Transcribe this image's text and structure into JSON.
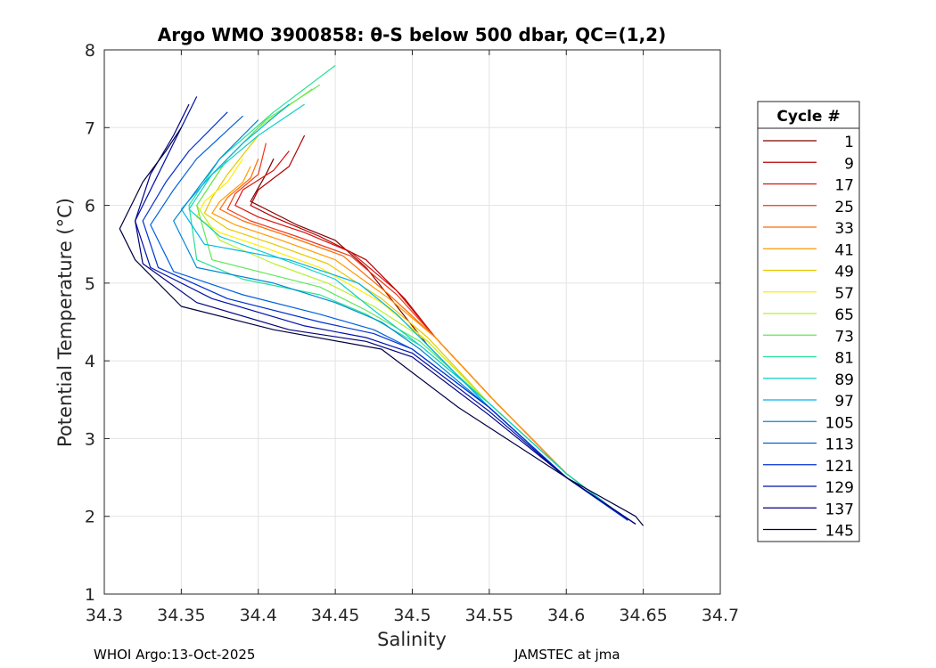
{
  "chart_data": {
    "type": "line",
    "title": "Argo WMO 3900858: θ-S below 500 dbar,  QC=(1,2)",
    "xlabel": "Salinity",
    "ylabel": "Potential Temperature (°C)",
    "xlim": [
      34.3,
      34.7
    ],
    "ylim": [
      1,
      8
    ],
    "xticks": [
      34.3,
      34.35,
      34.4,
      34.45,
      34.5,
      34.55,
      34.6,
      34.65,
      34.7
    ],
    "xtick_labels": [
      "34.3",
      "34.35",
      "34.4",
      "34.45",
      "34.5",
      "34.55",
      "34.6",
      "34.65",
      "34.7"
    ],
    "yticks": [
      1,
      2,
      3,
      4,
      5,
      6,
      7,
      8
    ],
    "ytick_labels": [
      "1",
      "2",
      "3",
      "4",
      "5",
      "6",
      "7",
      "8"
    ],
    "grid": true,
    "legend": {
      "title": "Cycle #",
      "position": "right",
      "entries": [
        {
          "label": "1",
          "color": "#800000"
        },
        {
          "label": "9",
          "color": "#b00000"
        },
        {
          "label": "17",
          "color": "#d81010"
        },
        {
          "label": "25",
          "color": "#f03818"
        },
        {
          "label": "33",
          "color": "#ff6a00"
        },
        {
          "label": "41",
          "color": "#ff9a00"
        },
        {
          "label": "49",
          "color": "#e8c800"
        },
        {
          "label": "57",
          "color": "#ffee00"
        },
        {
          "label": "65",
          "color": "#b8f030"
        },
        {
          "label": "73",
          "color": "#60e858"
        },
        {
          "label": "81",
          "color": "#28e098"
        },
        {
          "label": "89",
          "color": "#10d0c8"
        },
        {
          "label": "97",
          "color": "#00b4e8"
        },
        {
          "label": "105",
          "color": "#0088d8"
        },
        {
          "label": "113",
          "color": "#0060e0"
        },
        {
          "label": "121",
          "color": "#0030d0"
        },
        {
          "label": "129",
          "color": "#0010a8"
        },
        {
          "label": "137",
          "color": "#000080"
        },
        {
          "label": "145",
          "color": "#000040"
        }
      ]
    },
    "series": [
      {
        "name": "1",
        "color": "#800000",
        "x": [
          34.41,
          34.405,
          34.395,
          34.405,
          34.425,
          34.45,
          34.47,
          34.49,
          34.51,
          34.55,
          34.6,
          34.645
        ],
        "y": [
          6.6,
          6.4,
          6.05,
          5.95,
          5.75,
          5.55,
          5.2,
          4.7,
          4.2,
          3.4,
          2.5,
          1.9
        ]
      },
      {
        "name": "9",
        "color": "#b00000",
        "x": [
          34.43,
          34.42,
          34.4,
          34.395,
          34.41,
          34.44,
          34.47,
          34.495,
          34.515,
          34.555,
          34.6,
          34.64
        ],
        "y": [
          6.9,
          6.5,
          6.2,
          6.0,
          5.85,
          5.6,
          5.3,
          4.8,
          4.3,
          3.45,
          2.55,
          1.95
        ]
      },
      {
        "name": "17",
        "color": "#d81010",
        "x": [
          34.42,
          34.41,
          34.39,
          34.385,
          34.4,
          34.43,
          34.46,
          34.49,
          34.515,
          34.555,
          34.6,
          34.64
        ],
        "y": [
          6.7,
          6.45,
          6.2,
          6.0,
          5.85,
          5.65,
          5.4,
          4.9,
          4.3,
          3.45,
          2.55,
          1.95
        ]
      },
      {
        "name": "25",
        "color": "#f03818",
        "x": [
          34.405,
          34.4,
          34.385,
          34.38,
          34.395,
          34.425,
          34.46,
          34.49,
          34.515,
          34.555,
          34.6,
          34.64
        ],
        "y": [
          6.8,
          6.4,
          6.15,
          5.95,
          5.8,
          5.6,
          5.35,
          4.85,
          4.3,
          3.45,
          2.55,
          1.95
        ]
      },
      {
        "name": "33",
        "color": "#ff6a00",
        "x": [
          34.4,
          34.395,
          34.38,
          34.375,
          34.39,
          34.42,
          34.455,
          34.485,
          34.515,
          34.555,
          34.6,
          34.64
        ],
        "y": [
          6.6,
          6.35,
          6.1,
          5.95,
          5.8,
          5.6,
          5.35,
          4.85,
          4.3,
          3.45,
          2.55,
          1.95
        ]
      },
      {
        "name": "41",
        "color": "#ff9a00",
        "x": [
          34.395,
          34.39,
          34.375,
          34.37,
          34.385,
          34.415,
          34.45,
          34.485,
          34.515,
          34.555,
          34.6,
          34.64
        ],
        "y": [
          6.5,
          6.3,
          6.05,
          5.9,
          5.75,
          5.55,
          5.3,
          4.8,
          4.3,
          3.45,
          2.55,
          1.95
        ]
      },
      {
        "name": "49",
        "color": "#e8c800",
        "x": [
          34.4,
          34.38,
          34.37,
          34.365,
          34.38,
          34.41,
          34.445,
          34.48,
          34.51,
          34.55,
          34.6,
          34.64
        ],
        "y": [
          6.9,
          6.4,
          6.1,
          5.9,
          5.7,
          5.5,
          5.25,
          4.8,
          4.3,
          3.45,
          2.55,
          1.95
        ]
      },
      {
        "name": "57",
        "color": "#ffee00",
        "x": [
          34.39,
          34.38,
          34.365,
          34.36,
          34.375,
          34.405,
          34.44,
          34.48,
          34.51,
          34.55,
          34.6,
          34.64
        ],
        "y": [
          6.6,
          6.3,
          6.05,
          5.85,
          5.65,
          5.45,
          5.2,
          4.75,
          4.25,
          3.45,
          2.55,
          1.95
        ]
      },
      {
        "name": "65",
        "color": "#b8f030",
        "x": [
          34.435,
          34.4,
          34.38,
          34.36,
          34.375,
          34.41,
          34.445,
          34.475,
          34.51,
          34.55,
          34.6,
          34.64
        ],
        "y": [
          7.5,
          7.0,
          6.6,
          6.0,
          5.55,
          5.25,
          5.0,
          4.7,
          4.25,
          3.45,
          2.55,
          1.95
        ]
      },
      {
        "name": "73",
        "color": "#60e858",
        "x": [
          34.44,
          34.405,
          34.38,
          34.36,
          34.37,
          34.4,
          34.44,
          34.47,
          34.505,
          34.55,
          34.6,
          34.64
        ],
        "y": [
          7.55,
          7.1,
          6.6,
          6.0,
          5.3,
          5.15,
          4.95,
          4.65,
          4.25,
          3.45,
          2.55,
          1.95
        ]
      },
      {
        "name": "81",
        "color": "#28e098",
        "x": [
          34.45,
          34.41,
          34.375,
          34.355,
          34.36,
          34.39,
          34.44,
          34.47,
          34.505,
          34.55,
          34.6,
          34.64
        ],
        "y": [
          7.8,
          7.2,
          6.6,
          6.0,
          5.3,
          5.05,
          4.85,
          4.6,
          4.2,
          3.45,
          2.55,
          1.95
        ]
      },
      {
        "name": "89",
        "color": "#10d0c8",
        "x": [
          34.43,
          34.4,
          34.37,
          34.355,
          34.375,
          34.41,
          34.45,
          34.475,
          34.505,
          34.55,
          34.6,
          34.64
        ],
        "y": [
          7.3,
          6.9,
          6.4,
          5.95,
          5.6,
          5.35,
          5.05,
          4.65,
          4.2,
          3.45,
          2.55,
          1.95
        ]
      },
      {
        "name": "97",
        "color": "#00b4e8",
        "x": [
          34.42,
          34.39,
          34.37,
          34.35,
          34.365,
          34.42,
          34.465,
          34.49,
          34.51,
          34.55,
          34.6,
          34.64
        ],
        "y": [
          7.3,
          6.8,
          6.4,
          5.95,
          5.5,
          5.3,
          5.0,
          4.6,
          4.2,
          3.4,
          2.5,
          1.95
        ]
      },
      {
        "name": "105",
        "color": "#0088d8",
        "x": [
          34.4,
          34.375,
          34.36,
          34.345,
          34.36,
          34.41,
          34.45,
          34.48,
          34.505,
          34.55,
          34.6,
          34.64
        ],
        "y": [
          7.1,
          6.6,
          6.2,
          5.8,
          5.2,
          5.0,
          4.75,
          4.5,
          4.15,
          3.4,
          2.5,
          1.95
        ]
      },
      {
        "name": "113",
        "color": "#0060e0",
        "x": [
          34.39,
          34.36,
          34.345,
          34.33,
          34.345,
          34.39,
          34.44,
          34.475,
          34.5,
          34.55,
          34.6,
          34.64
        ],
        "y": [
          7.15,
          6.6,
          6.2,
          5.75,
          5.15,
          4.85,
          4.6,
          4.4,
          4.15,
          3.4,
          2.5,
          1.95
        ]
      },
      {
        "name": "121",
        "color": "#0030d0",
        "x": [
          34.38,
          34.355,
          34.34,
          34.325,
          34.335,
          34.38,
          34.44,
          34.475,
          34.5,
          34.55,
          34.6,
          34.64
        ],
        "y": [
          7.2,
          6.7,
          6.3,
          5.8,
          5.2,
          4.8,
          4.5,
          4.35,
          4.15,
          3.4,
          2.5,
          1.95
        ]
      },
      {
        "name": "129",
        "color": "#0010a8",
        "x": [
          34.36,
          34.345,
          34.335,
          34.32,
          34.33,
          34.37,
          34.43,
          34.47,
          34.5,
          34.55,
          34.6,
          34.645
        ],
        "y": [
          7.4,
          6.8,
          6.4,
          5.8,
          5.2,
          4.8,
          4.45,
          4.3,
          4.1,
          3.35,
          2.5,
          1.9
        ]
      },
      {
        "name": "137",
        "color": "#000080",
        "x": [
          34.355,
          34.345,
          34.33,
          34.32,
          34.325,
          34.36,
          34.42,
          34.47,
          34.5,
          34.55,
          34.6,
          34.645
        ],
        "y": [
          7.3,
          6.9,
          6.4,
          5.8,
          5.25,
          4.75,
          4.4,
          4.25,
          4.05,
          3.3,
          2.5,
          1.9
        ]
      },
      {
        "name": "145",
        "color": "#000040",
        "x": [
          34.35,
          34.34,
          34.325,
          34.31,
          34.32,
          34.35,
          34.41,
          34.48,
          34.53,
          34.6,
          34.645,
          34.65
        ],
        "y": [
          7.0,
          6.7,
          6.3,
          5.7,
          5.3,
          4.7,
          4.4,
          4.15,
          3.4,
          2.5,
          2.0,
          1.88
        ]
      }
    ]
  },
  "footer": {
    "left": "WHOI Argo:13-Oct-2025",
    "right": "JAMSTEC at jma"
  }
}
